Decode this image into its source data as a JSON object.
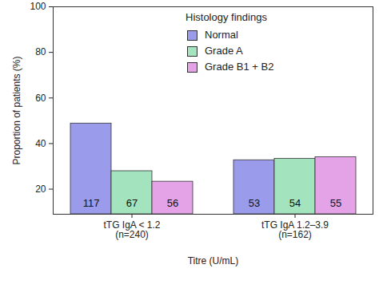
{
  "chart_data": {
    "type": "bar",
    "categories": [
      "tTG IgA < 1.2\n(n=240)",
      "tTG IgA 1.2–3.9\n(n=162)"
    ],
    "xlabel": "Titre (U/mL)",
    "ylabel": "Proportion of patients (%)",
    "legend_title": "Histology findings",
    "legend": "top",
    "series": [
      {
        "name": "Normal",
        "color": "#9b9beb",
        "values": [
          48.8,
          32.7
        ],
        "counts": [
          117,
          53
        ]
      },
      {
        "name": "Grade A",
        "color": "#a3e3bd",
        "values": [
          27.9,
          33.3
        ],
        "counts": [
          67,
          54
        ]
      },
      {
        "name": "Grade B1 + B2",
        "color": "#e3a3e6",
        "values": [
          23.3,
          34.0
        ],
        "counts": [
          56,
          55
        ]
      }
    ],
    "ylim": [
      9,
      100
    ],
    "yticks": [
      20,
      40,
      60,
      80,
      100
    ],
    "grid": false
  }
}
